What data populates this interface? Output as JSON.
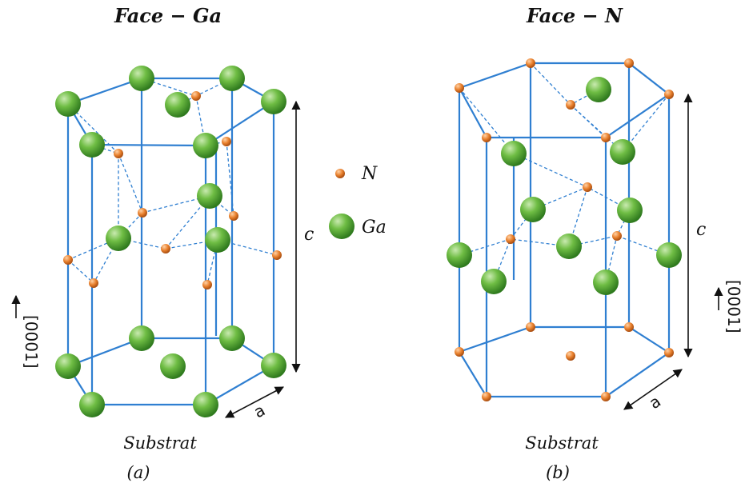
{
  "panel_a": {
    "title": "Face − Ga",
    "c_label": "c",
    "a_label": "a",
    "direction_label": "[0001]",
    "substrate_label": "Substrat",
    "caption": "(a)"
  },
  "panel_b": {
    "title": "Face − N",
    "c_label": "c",
    "a_label": "a",
    "direction_label": "[0001]",
    "substrate_label": "Substrat",
    "caption": "(b)"
  },
  "legend": {
    "n_label": "N",
    "ga_label": "Ga"
  },
  "colors": {
    "bond": "#2f7fd1",
    "ga_atom": "#5fae3a",
    "n_atom": "#e07a25"
  }
}
